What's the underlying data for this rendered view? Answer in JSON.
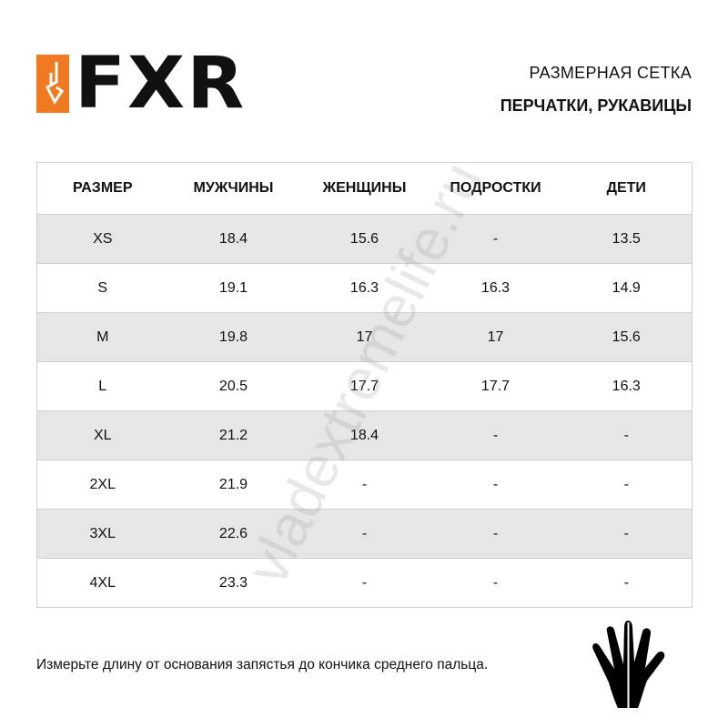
{
  "brand": {
    "logo_text": "FXR",
    "accent": "#f07a22"
  },
  "header": {
    "title": "РАЗМЕРНАЯ СЕТКА",
    "subtitle": "ПЕРЧАТКИ, РУКАВИЦЫ"
  },
  "table": {
    "columns": [
      "РАЗМЕР",
      "МУЖЧИНЫ",
      "ЖЕНЩИНЫ",
      "ПОДРОСТКИ",
      "ДЕТИ"
    ],
    "rows": [
      [
        "XS",
        "18.4",
        "15.6",
        "-",
        "13.5"
      ],
      [
        "S",
        "19.1",
        "16.3",
        "16.3",
        "14.9"
      ],
      [
        "M",
        "19.8",
        "17",
        "17",
        "15.6"
      ],
      [
        "L",
        "20.5",
        "17.7",
        "17.7",
        "16.3"
      ],
      [
        "XL",
        "21.2",
        "18.4",
        "-",
        "-"
      ],
      [
        "2XL",
        "21.9",
        "-",
        "-",
        "-"
      ],
      [
        "3XL",
        "22.6",
        "-",
        "-",
        "-"
      ],
      [
        "4XL",
        "23.3",
        "-",
        "-",
        "-"
      ]
    ],
    "stripe_color": "#e6e6e6"
  },
  "note": "Измерьте длину от основания запястья до кончика среднего пальца.",
  "watermark": "vladextremelife.ru",
  "icons": {
    "hand": "hand-measure-icon"
  }
}
